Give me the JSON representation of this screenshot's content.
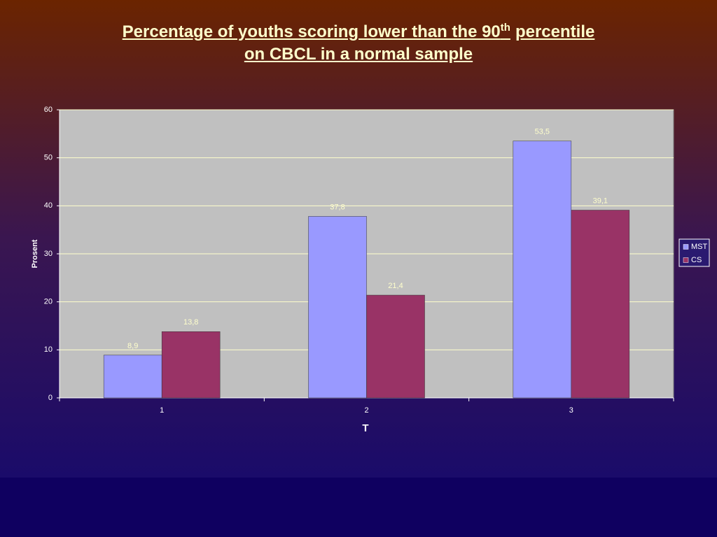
{
  "chart_data": {
    "type": "bar",
    "title_lines": [
      {
        "text": "Percentage of youths scoring lower than the 90",
        "sup": "th",
        "after": "percentile"
      },
      "on CBCL in a normal sample"
    ],
    "x_label": "T",
    "y_label": "Prosent",
    "categories": [
      "1",
      "2",
      "3"
    ],
    "series": [
      {
        "name": "MST",
        "color": "#9999ff",
        "values": [
          8.9,
          37.8,
          53.5
        ],
        "value_labels": [
          "8,9",
          "37,8",
          "53,5"
        ]
      },
      {
        "name": "CS",
        "color": "#993366",
        "values": [
          13.8,
          21.4,
          39.1
        ],
        "value_labels": [
          "13,8",
          "21,4",
          "39,1"
        ]
      }
    ],
    "ylim": [
      0,
      60
    ],
    "yticks": [
      0,
      10,
      20,
      30,
      40,
      50,
      60
    ],
    "grid": true,
    "legend": "right"
  }
}
